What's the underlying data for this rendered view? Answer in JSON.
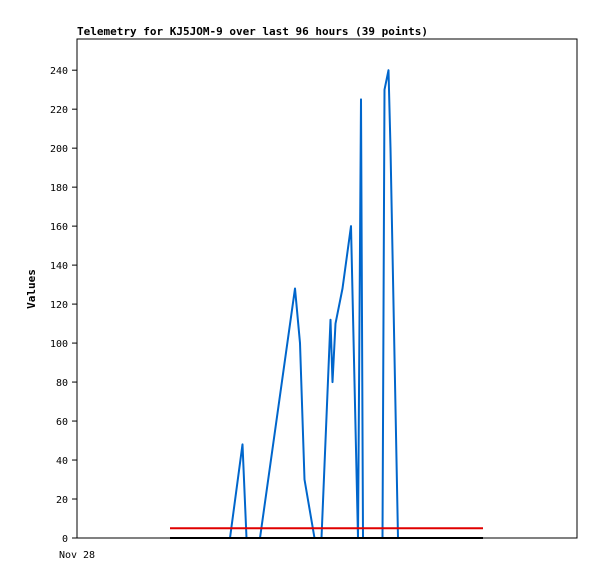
{
  "chart_data": {
    "type": "line",
    "title": "Telemetry for KJ5JOM-9 over last 96 hours (39 points)",
    "ylabel": "Values",
    "xlabel": "",
    "x_tick_labels": [
      "Nov 28"
    ],
    "ylim": [
      0,
      256
    ],
    "xlim": [
      0,
      100
    ],
    "y_ticks": [
      0,
      20,
      40,
      60,
      80,
      100,
      120,
      140,
      160,
      180,
      200,
      220,
      240
    ],
    "grid": false,
    "legend": "none",
    "series": [
      {
        "color": "#0066cc",
        "x": [
          30.6,
          33.1,
          33.9,
          36.6,
          43.6,
          44.6,
          45.5,
          47.5,
          48.9,
          50.7,
          51.1,
          51.7,
          53.1,
          54.8,
          56.2,
          56.8,
          57.2,
          58.2,
          59.3,
          61.1,
          61.5,
          62.3,
          62.7,
          64.2,
          64.6
        ],
        "y": [
          0,
          48,
          0,
          0,
          128,
          100,
          30,
          0,
          0,
          112,
          80,
          110,
          128,
          160,
          0,
          225,
          0,
          0,
          0,
          0,
          230,
          240,
          200,
          0,
          0
        ]
      },
      {
        "color": "#e00000",
        "x": [
          18.6,
          81.2
        ],
        "y": [
          5,
          5
        ]
      },
      {
        "color": "#000000",
        "x": [
          18.6,
          81.2
        ],
        "y": [
          0,
          0
        ]
      }
    ]
  }
}
